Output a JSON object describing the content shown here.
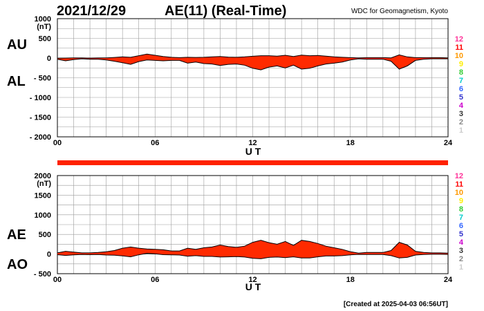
{
  "header": {
    "date": "2021/12/29",
    "title": "AE(11) (Real-Time)",
    "source": "WDC for Geomagnetism, Kyoto"
  },
  "footer": {
    "created": "[Created at 2025-04-03 06:56UT]"
  },
  "colors": {
    "fill": "#ff2a00",
    "line": "#000000",
    "grid": "#9a9a9a",
    "station_colors": [
      "#cccccc",
      "#888888",
      "#333333",
      "#cc00cc",
      "#3333cc",
      "#3366ff",
      "#00cccc",
      "#33cc33",
      "#ffee00",
      "#ff9900",
      "#ff0000",
      "#ff3399"
    ]
  },
  "coverage_bar": {
    "stations_available": 12,
    "hours": [
      0,
      24
    ]
  },
  "station_numbers": [
    "12",
    "11",
    "10",
    "9",
    "8",
    "7",
    "6",
    "5",
    "4",
    "3",
    "2",
    "1"
  ],
  "chart_data": [
    {
      "type": "area",
      "panel": "AU/AL",
      "units": "(nT)",
      "xlabel": "U T",
      "xlim": [
        0,
        24
      ],
      "ylim": [
        -2000,
        1000
      ],
      "yticks": [
        1000,
        500,
        0,
        -500,
        -1000,
        -1500,
        -2000
      ],
      "ytick_labels": [
        "1000",
        "500",
        "0",
        "- 500",
        "- 1000",
        "- 1500",
        "- 2000"
      ],
      "xticks": [
        0,
        6,
        12,
        18,
        24
      ],
      "xtick_labels": [
        "00",
        "06",
        "12",
        "18",
        "24"
      ],
      "series_labels": {
        "upper": "AU",
        "lower": "AL"
      },
      "x": [
        0,
        0.5,
        1,
        1.5,
        2,
        2.5,
        3,
        3.5,
        4,
        4.5,
        5,
        5.5,
        6,
        6.5,
        7,
        7.5,
        8,
        8.5,
        9,
        9.5,
        10,
        10.5,
        11,
        11.5,
        12,
        12.5,
        13,
        13.5,
        14,
        14.5,
        15,
        15.5,
        16,
        16.5,
        17,
        17.5,
        18,
        18.5,
        19,
        19.5,
        20,
        20.5,
        21,
        21.5,
        22,
        22.5,
        23,
        23.5,
        24
      ],
      "series": [
        {
          "name": "AU",
          "values": [
            -5,
            0,
            5,
            5,
            0,
            5,
            5,
            15,
            30,
            20,
            60,
            100,
            70,
            40,
            20,
            10,
            20,
            15,
            20,
            30,
            40,
            25,
            20,
            30,
            45,
            60,
            60,
            50,
            70,
            40,
            75,
            60,
            65,
            50,
            30,
            20,
            10,
            5,
            10,
            10,
            10,
            5,
            80,
            30,
            10,
            10,
            10,
            10,
            5
          ]
        },
        {
          "name": "AL",
          "values": [
            -30,
            -70,
            -40,
            -20,
            -30,
            -30,
            -50,
            -80,
            -120,
            -160,
            -90,
            -50,
            -60,
            -70,
            -60,
            -60,
            -130,
            -100,
            -140,
            -150,
            -190,
            -160,
            -150,
            -180,
            -260,
            -300,
            -230,
            -200,
            -250,
            -180,
            -280,
            -260,
            -200,
            -150,
            -130,
            -100,
            -50,
            -20,
            -30,
            -30,
            -30,
            -80,
            -280,
            -200,
            -60,
            -30,
            -20,
            -20,
            -20
          ]
        }
      ]
    },
    {
      "type": "area",
      "panel": "AE/AO",
      "units": "(nT)",
      "xlabel": "U T",
      "xlim": [
        0,
        24
      ],
      "ylim": [
        -500,
        2000
      ],
      "yticks": [
        2000,
        1500,
        1000,
        500,
        0,
        -500
      ],
      "ytick_labels": [
        "2000",
        "1500",
        "1000",
        "500",
        "0",
        "- 500"
      ],
      "xticks": [
        0,
        6,
        12,
        18,
        24
      ],
      "xtick_labels": [
        "00",
        "06",
        "12",
        "18",
        "24"
      ],
      "series_labels": {
        "upper": "AE",
        "lower": "AO"
      },
      "x": [
        0,
        0.5,
        1,
        1.5,
        2,
        2.5,
        3,
        3.5,
        4,
        4.5,
        5,
        5.5,
        6,
        6.5,
        7,
        7.5,
        8,
        8.5,
        9,
        9.5,
        10,
        10.5,
        11,
        11.5,
        12,
        12.5,
        13,
        13.5,
        14,
        14.5,
        15,
        15.5,
        16,
        16.5,
        17,
        17.5,
        18,
        18.5,
        19,
        19.5,
        20,
        20.5,
        21,
        21.5,
        22,
        22.5,
        23,
        23.5,
        24
      ],
      "series": [
        {
          "name": "AE",
          "values": [
            30,
            70,
            50,
            30,
            30,
            40,
            60,
            90,
            150,
            180,
            150,
            130,
            120,
            110,
            80,
            80,
            150,
            120,
            160,
            180,
            230,
            190,
            170,
            200,
            300,
            350,
            290,
            250,
            320,
            220,
            350,
            320,
            270,
            200,
            160,
            120,
            60,
            25,
            40,
            40,
            40,
            90,
            300,
            230,
            70,
            40,
            30,
            30,
            25
          ]
        },
        {
          "name": "AO",
          "values": [
            -15,
            -35,
            -20,
            -10,
            -15,
            -10,
            -25,
            -30,
            -45,
            -70,
            -20,
            20,
            5,
            -15,
            -20,
            -25,
            -55,
            -40,
            -60,
            -60,
            -75,
            -70,
            -65,
            -75,
            -110,
            -120,
            -85,
            -75,
            -90,
            -70,
            -100,
            -100,
            -70,
            -50,
            -50,
            -40,
            -20,
            -8,
            -10,
            -10,
            -10,
            -40,
            -100,
            -85,
            -25,
            -10,
            -5,
            -5,
            -8
          ]
        }
      ]
    }
  ]
}
